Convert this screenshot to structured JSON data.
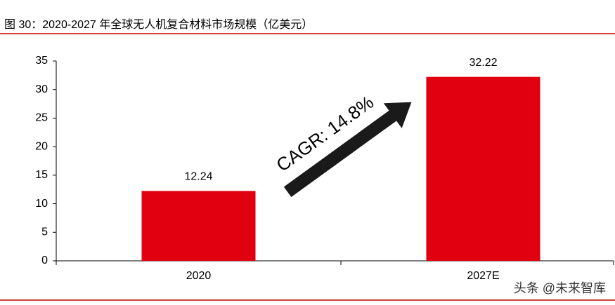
{
  "chart_data": {
    "type": "bar",
    "title": "图 30：2020-2027 年全球无人机复合材料市场规模（亿美元）",
    "categories": [
      "2020",
      "2027E"
    ],
    "values": [
      12.24,
      32.22
    ],
    "color": "#e0000f",
    "ylim": [
      0,
      35
    ],
    "yticks": [
      0,
      5,
      10,
      15,
      20,
      25,
      30,
      35
    ],
    "annotation": "CAGR: 14.8%",
    "watermark": "头条 @未来智库"
  }
}
